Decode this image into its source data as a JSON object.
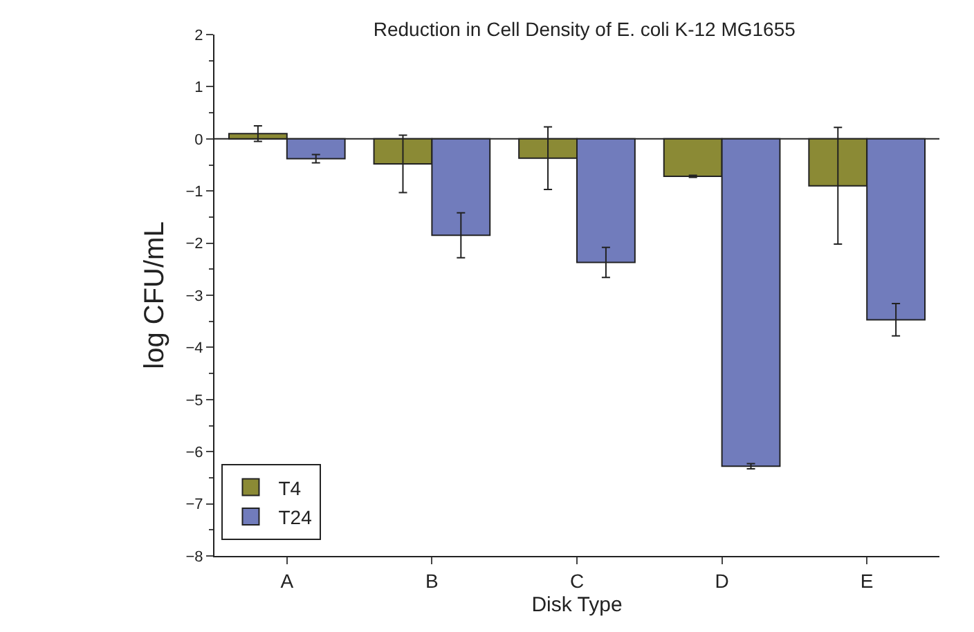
{
  "chart_data": {
    "type": "bar",
    "title": "Reduction in Cell Density of E. coli K-12 MG1655",
    "xlabel": "Disk Type",
    "ylabel": "log CFU/mL",
    "categories": [
      "A",
      "B",
      "C",
      "D",
      "E"
    ],
    "series": [
      {
        "name": "T4",
        "color": "#8b8a35",
        "values": [
          0.1,
          -0.48,
          -0.37,
          -0.72,
          -0.9
        ],
        "errors": [
          0.15,
          0.55,
          0.6,
          0.02,
          1.12
        ]
      },
      {
        "name": "T24",
        "color": "#717cbc",
        "values": [
          -0.38,
          -1.85,
          -2.37,
          -6.28,
          -3.47
        ],
        "errors": [
          0.08,
          0.43,
          0.29,
          0.05,
          0.31
        ]
      }
    ],
    "ylim": [
      -8,
      2
    ],
    "yticks": [
      -8,
      -7,
      -6,
      -5,
      -4,
      -3,
      -2,
      -1,
      0,
      1,
      2
    ],
    "ref_lines": [
      {
        "axis": "y",
        "value": 0
      }
    ],
    "legend": "bottom left"
  }
}
